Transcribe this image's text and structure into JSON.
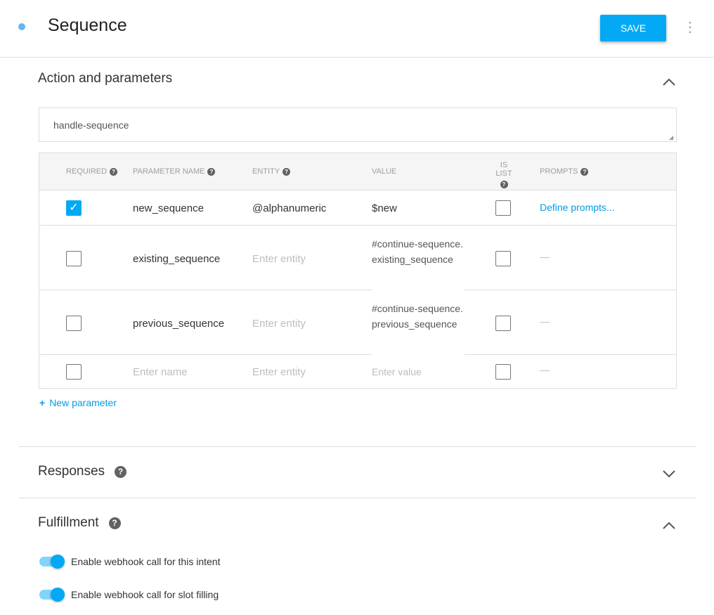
{
  "header": {
    "title": "Sequence",
    "save_label": "SAVE",
    "status_color": "#64b5f6"
  },
  "action_section": {
    "title": "Action and parameters",
    "action_value": "handle-sequence",
    "columns": [
      "REQUIRED",
      "PARAMETER NAME",
      "ENTITY",
      "VALUE",
      "IS LIST",
      "PROMPTS"
    ],
    "rows": [
      {
        "required": true,
        "name": "new_sequence",
        "entity": "@alphanumeric",
        "value": "$new",
        "is_list": false,
        "prompts": "Define prompts..."
      },
      {
        "required": false,
        "name": "existing_sequence",
        "entity_placeholder": "Enter entity",
        "value": "#continue-sequence.existing_sequence",
        "is_list": false,
        "prompts": "—"
      },
      {
        "required": false,
        "name": "previous_sequence",
        "entity_placeholder": "Enter entity",
        "value": "#continue-sequence.previous_sequence",
        "is_list": false,
        "prompts": "—"
      },
      {
        "required": false,
        "name_placeholder": "Enter name",
        "entity_placeholder": "Enter entity",
        "value_placeholder": "Enter value",
        "is_list": false,
        "prompts": "—"
      }
    ],
    "new_parameter": "New parameter"
  },
  "responses": {
    "title": "Responses"
  },
  "fulfillment": {
    "title": "Fulfillment",
    "toggles": [
      {
        "label": "Enable webhook call for this intent",
        "on": true
      },
      {
        "label": "Enable webhook call for slot filling",
        "on": true
      }
    ]
  }
}
